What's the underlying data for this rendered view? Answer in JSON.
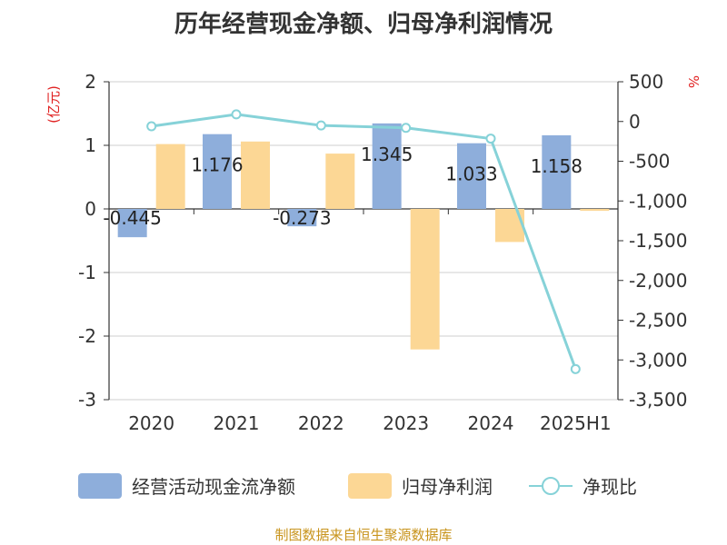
{
  "page": {
    "title": "历年经营现金净额、归母净利润情况",
    "source": "制图数据来自恒生聚源数据库"
  },
  "colors": {
    "cash_flow": "#8eaedb",
    "net_profit": "#fcd795",
    "ratio": "#86d2d8",
    "axis_unit": "#e02020",
    "axis": "#333333",
    "grid": "#cfcfcf",
    "source": "#c8941c"
  },
  "chart_data": {
    "type": "bar",
    "title": "历年经营现金净额、归母净利润情况",
    "categories": [
      "2020",
      "2021",
      "2022",
      "2023",
      "2024",
      "2025H1"
    ],
    "series": [
      {
        "name": "经营活动现金流净额",
        "kind": "bar",
        "axis": "left",
        "values": [
          -0.445,
          1.176,
          -0.273,
          1.345,
          1.033,
          1.158
        ],
        "data_labels": [
          "-0.445",
          "1.176",
          "-0.273",
          "1.345",
          "1.033",
          "1.158"
        ]
      },
      {
        "name": "归母净利润",
        "kind": "bar",
        "axis": "left",
        "values": [
          1.02,
          1.06,
          0.87,
          -2.21,
          -0.52,
          -0.03
        ]
      },
      {
        "name": "净现比",
        "kind": "line",
        "axis": "right",
        "values": [
          -60,
          90,
          -50,
          -80,
          -215,
          -3115
        ]
      }
    ],
    "y_left": {
      "unit": "(亿元)",
      "range": [
        -3,
        2
      ],
      "ticks": [
        2,
        1,
        0,
        -1,
        -2,
        -3
      ],
      "tick_labels": [
        "2",
        "1",
        "0",
        "-1",
        "-2",
        "-3"
      ]
    },
    "y_right": {
      "unit": "%",
      "range": [
        -3500,
        500
      ],
      "ticks": [
        500,
        0,
        -500,
        -1000,
        -1500,
        -2000,
        -2500,
        -3000,
        -3500
      ],
      "tick_labels": [
        "500",
        "0",
        "-500",
        "-1,000",
        "-1,500",
        "-2,000",
        "-2,500",
        "-3,000",
        "-3,500"
      ]
    },
    "grid": true,
    "legend_position": "bottom"
  }
}
